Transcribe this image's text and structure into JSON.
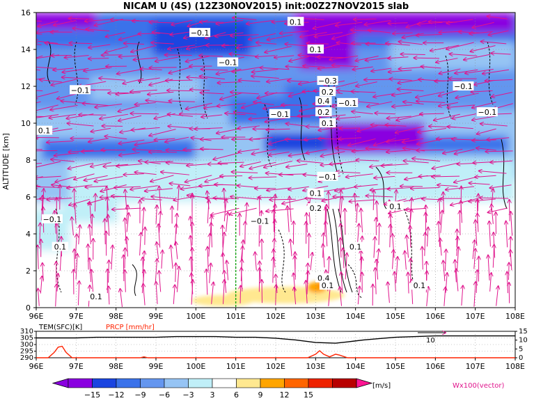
{
  "header": {
    "title": "NICAM U (4S) (12Z30NOV2015) init:00Z27NOV2015 slab"
  },
  "chart_data": [
    {
      "type": "heatmap",
      "title": "NICAM U (4S) (12Z30NOV2015) init:00Z27NOV2015 slab",
      "ylabel": "ALTITUDE [km]",
      "xlim": [
        96,
        108
      ],
      "ylim": [
        0,
        16
      ],
      "x_ticks": [
        "96E",
        "97E",
        "98E",
        "99E",
        "100E",
        "101E",
        "102E",
        "103E",
        "104E",
        "105E",
        "106E",
        "107E",
        "108E"
      ],
      "y_ticks": [
        "0",
        "2",
        "4",
        "6",
        "8",
        "10",
        "12",
        "14",
        "16"
      ],
      "grid": true,
      "marker_line_lon": 101.0,
      "contour_labels": [
        {
          "text": "0.1",
          "x": 102.5,
          "y": 15.5
        },
        {
          "text": "−0.1",
          "x": 100.1,
          "y": 14.9
        },
        {
          "text": "0.1",
          "x": 103.0,
          "y": 14.0
        },
        {
          "text": "−0.1",
          "x": 100.8,
          "y": 13.3
        },
        {
          "text": "−0.1",
          "x": 97.1,
          "y": 11.8
        },
        {
          "text": "−0.3",
          "x": 103.3,
          "y": 12.3
        },
        {
          "text": "0.2",
          "x": 103.3,
          "y": 11.7
        },
        {
          "text": "0.4",
          "x": 103.2,
          "y": 11.2
        },
        {
          "text": "0.2",
          "x": 103.2,
          "y": 10.6
        },
        {
          "text": "0.1",
          "x": 103.3,
          "y": 10.0
        },
        {
          "text": "−0.1",
          "x": 103.8,
          "y": 11.1
        },
        {
          "text": "−0.1",
          "x": 102.1,
          "y": 10.5
        },
        {
          "text": "−0.1",
          "x": 106.7,
          "y": 12.0
        },
        {
          "text": "−0.1",
          "x": 107.3,
          "y": 10.6
        },
        {
          "text": "0.1",
          "x": 96.2,
          "y": 9.6
        },
        {
          "text": "−0.1",
          "x": 103.3,
          "y": 7.1
        },
        {
          "text": "0.1",
          "x": 103.0,
          "y": 6.2
        },
        {
          "text": "0.2",
          "x": 103.0,
          "y": 5.4
        },
        {
          "text": "−0.1",
          "x": 96.4,
          "y": 4.8
        },
        {
          "text": "−0.1",
          "x": 101.6,
          "y": 4.7
        },
        {
          "text": "0.1",
          "x": 105.0,
          "y": 5.5
        },
        {
          "text": "0.1",
          "x": 96.6,
          "y": 3.3
        },
        {
          "text": "0.1",
          "x": 104.0,
          "y": 3.3
        },
        {
          "text": "0.1",
          "x": 97.5,
          "y": 0.6
        },
        {
          "text": "0.4",
          "x": 103.2,
          "y": 1.6
        },
        {
          "text": "0.1",
          "x": 103.3,
          "y": 1.2
        },
        {
          "text": "0.1",
          "x": 105.6,
          "y": 1.2
        }
      ]
    },
    {
      "type": "line",
      "xlim": [
        96,
        108
      ],
      "left_axis": {
        "label": "TEM(SFC)[K]",
        "ticks": [
          "290",
          "295",
          "300",
          "305",
          "310"
        ],
        "range": [
          290,
          310
        ]
      },
      "right_axis": {
        "ticks": [
          "0",
          "5",
          "10",
          "15"
        ],
        "range": [
          0,
          15
        ]
      },
      "precip_label": "PRCP [mm/hr]",
      "series": [
        {
          "name": "TEM(SFC)[K]",
          "color": "#000000",
          "x": [
            96,
            96.5,
            97,
            97.5,
            98,
            98.5,
            99,
            99.5,
            100,
            100.5,
            101,
            101.5,
            102,
            102.5,
            103,
            103.5,
            103.8,
            104.2,
            104.6,
            105,
            105.5,
            106,
            106.5,
            107,
            107.5,
            108
          ],
          "y": [
            305,
            305,
            305,
            305.5,
            305.5,
            305.5,
            305.5,
            306,
            306,
            306,
            305.5,
            305.5,
            304.8,
            303.5,
            301.5,
            301.0,
            302.0,
            303.5,
            304.5,
            305.5,
            306.0,
            306.5,
            306.5,
            306.5,
            306.5,
            306.5
          ]
        },
        {
          "name": "PRCP [mm/hr]",
          "color": "#ff2200",
          "x": [
            96,
            96.3,
            96.45,
            96.55,
            96.65,
            96.75,
            96.9,
            97.1,
            98,
            98.6,
            98.7,
            98.8,
            99,
            102.8,
            103.0,
            103.1,
            103.2,
            103.35,
            103.5,
            103.6,
            103.8,
            104,
            108
          ],
          "y": [
            0,
            0,
            3,
            6,
            6.5,
            3,
            0,
            0,
            0,
            0,
            0.5,
            0,
            0,
            0,
            2,
            4,
            2,
            0.5,
            2,
            1.5,
            0,
            0,
            0
          ]
        }
      ],
      "annotation": "10"
    }
  ],
  "colorbar": {
    "ticks": [
      "−15",
      "−12",
      "−9",
      "−6",
      "−3",
      "3",
      "6",
      "9",
      "12",
      "15"
    ],
    "unit": "[m/s]",
    "colors": [
      "#8a00e0",
      "#1a44e0",
      "#3a72ea",
      "#6496ef",
      "#96c4f4",
      "#c0eff8",
      "#ffffff",
      "#ffe890",
      "#ffa500",
      "#ff6500",
      "#ee2200",
      "#b80000"
    ],
    "end_colors": {
      "min": "#8a00e0",
      "max": "#ff1493"
    }
  },
  "vector_legend": "Wx100(vector)"
}
